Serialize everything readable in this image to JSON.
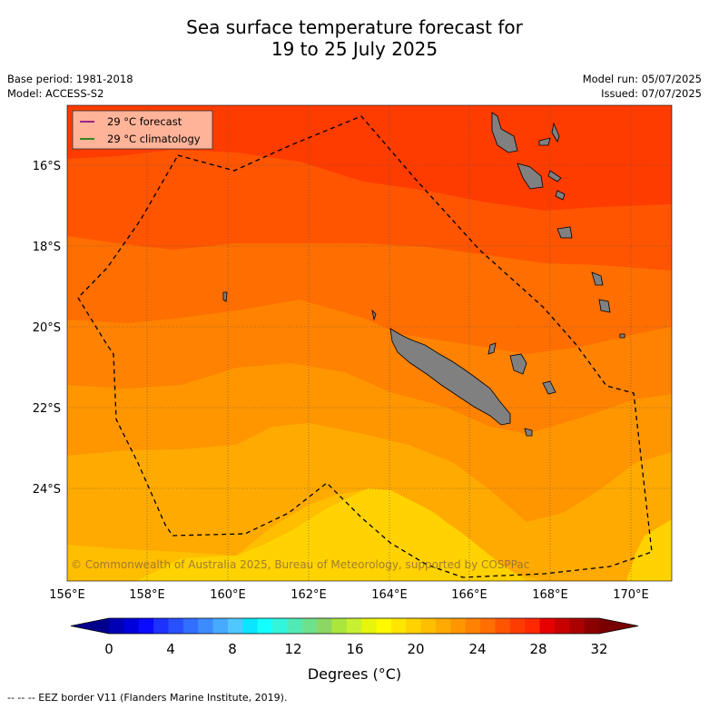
{
  "title_line1": "Sea surface temperature forecast for",
  "title_line2": "19 to 25 July 2025",
  "base_period": "Base period: 1981-2018",
  "model": "Model: ACCESS-S2",
  "model_run": "Model run: 05/07/2025",
  "issued": "Issued: 07/07/2025",
  "legend": {
    "forecast_label": "29 °C  forecast",
    "forecast_color": "#800080",
    "climatology_label": "29 °C  climatology",
    "climatology_color": "#008000"
  },
  "copyright": "© Commonwealth of Australia 2025, Bureau of Meteorology, supported by COSPPac",
  "lat_labels": [
    "16°S",
    "18°S",
    "20°S",
    "22°S",
    "24°S"
  ],
  "lon_labels": [
    "156°E",
    "158°E",
    "160°E",
    "162°E",
    "164°E",
    "166°E",
    "168°E",
    "170°E"
  ],
  "colorbar": {
    "ticks": [
      "0",
      "4",
      "8",
      "12",
      "16",
      "20",
      "24",
      "28",
      "32"
    ],
    "title": "Degrees (°C)",
    "colors": [
      "#00008c",
      "#0000b4",
      "#0000dc",
      "#0a0aff",
      "#1e32ff",
      "#2850ff",
      "#326eff",
      "#3c8cff",
      "#46aaff",
      "#50c8ff",
      "#0ae6ff",
      "#14ffff",
      "#32f5dc",
      "#50ebb4",
      "#6ee18c",
      "#8cd764",
      "#aae63c",
      "#c8f032",
      "#e6f50a",
      "#fffa00",
      "#ffe600",
      "#ffd200",
      "#ffbe00",
      "#ffaa00",
      "#ff9600",
      "#ff8200",
      "#ff6e00",
      "#ff5500",
      "#ff3c00",
      "#ff2800",
      "#e60000",
      "#c80000",
      "#aa0000",
      "#8c0000",
      "#780000"
    ]
  },
  "footer": "--  --  -- EEZ border V11 (Flanders Marine Institute, 2019)."
}
